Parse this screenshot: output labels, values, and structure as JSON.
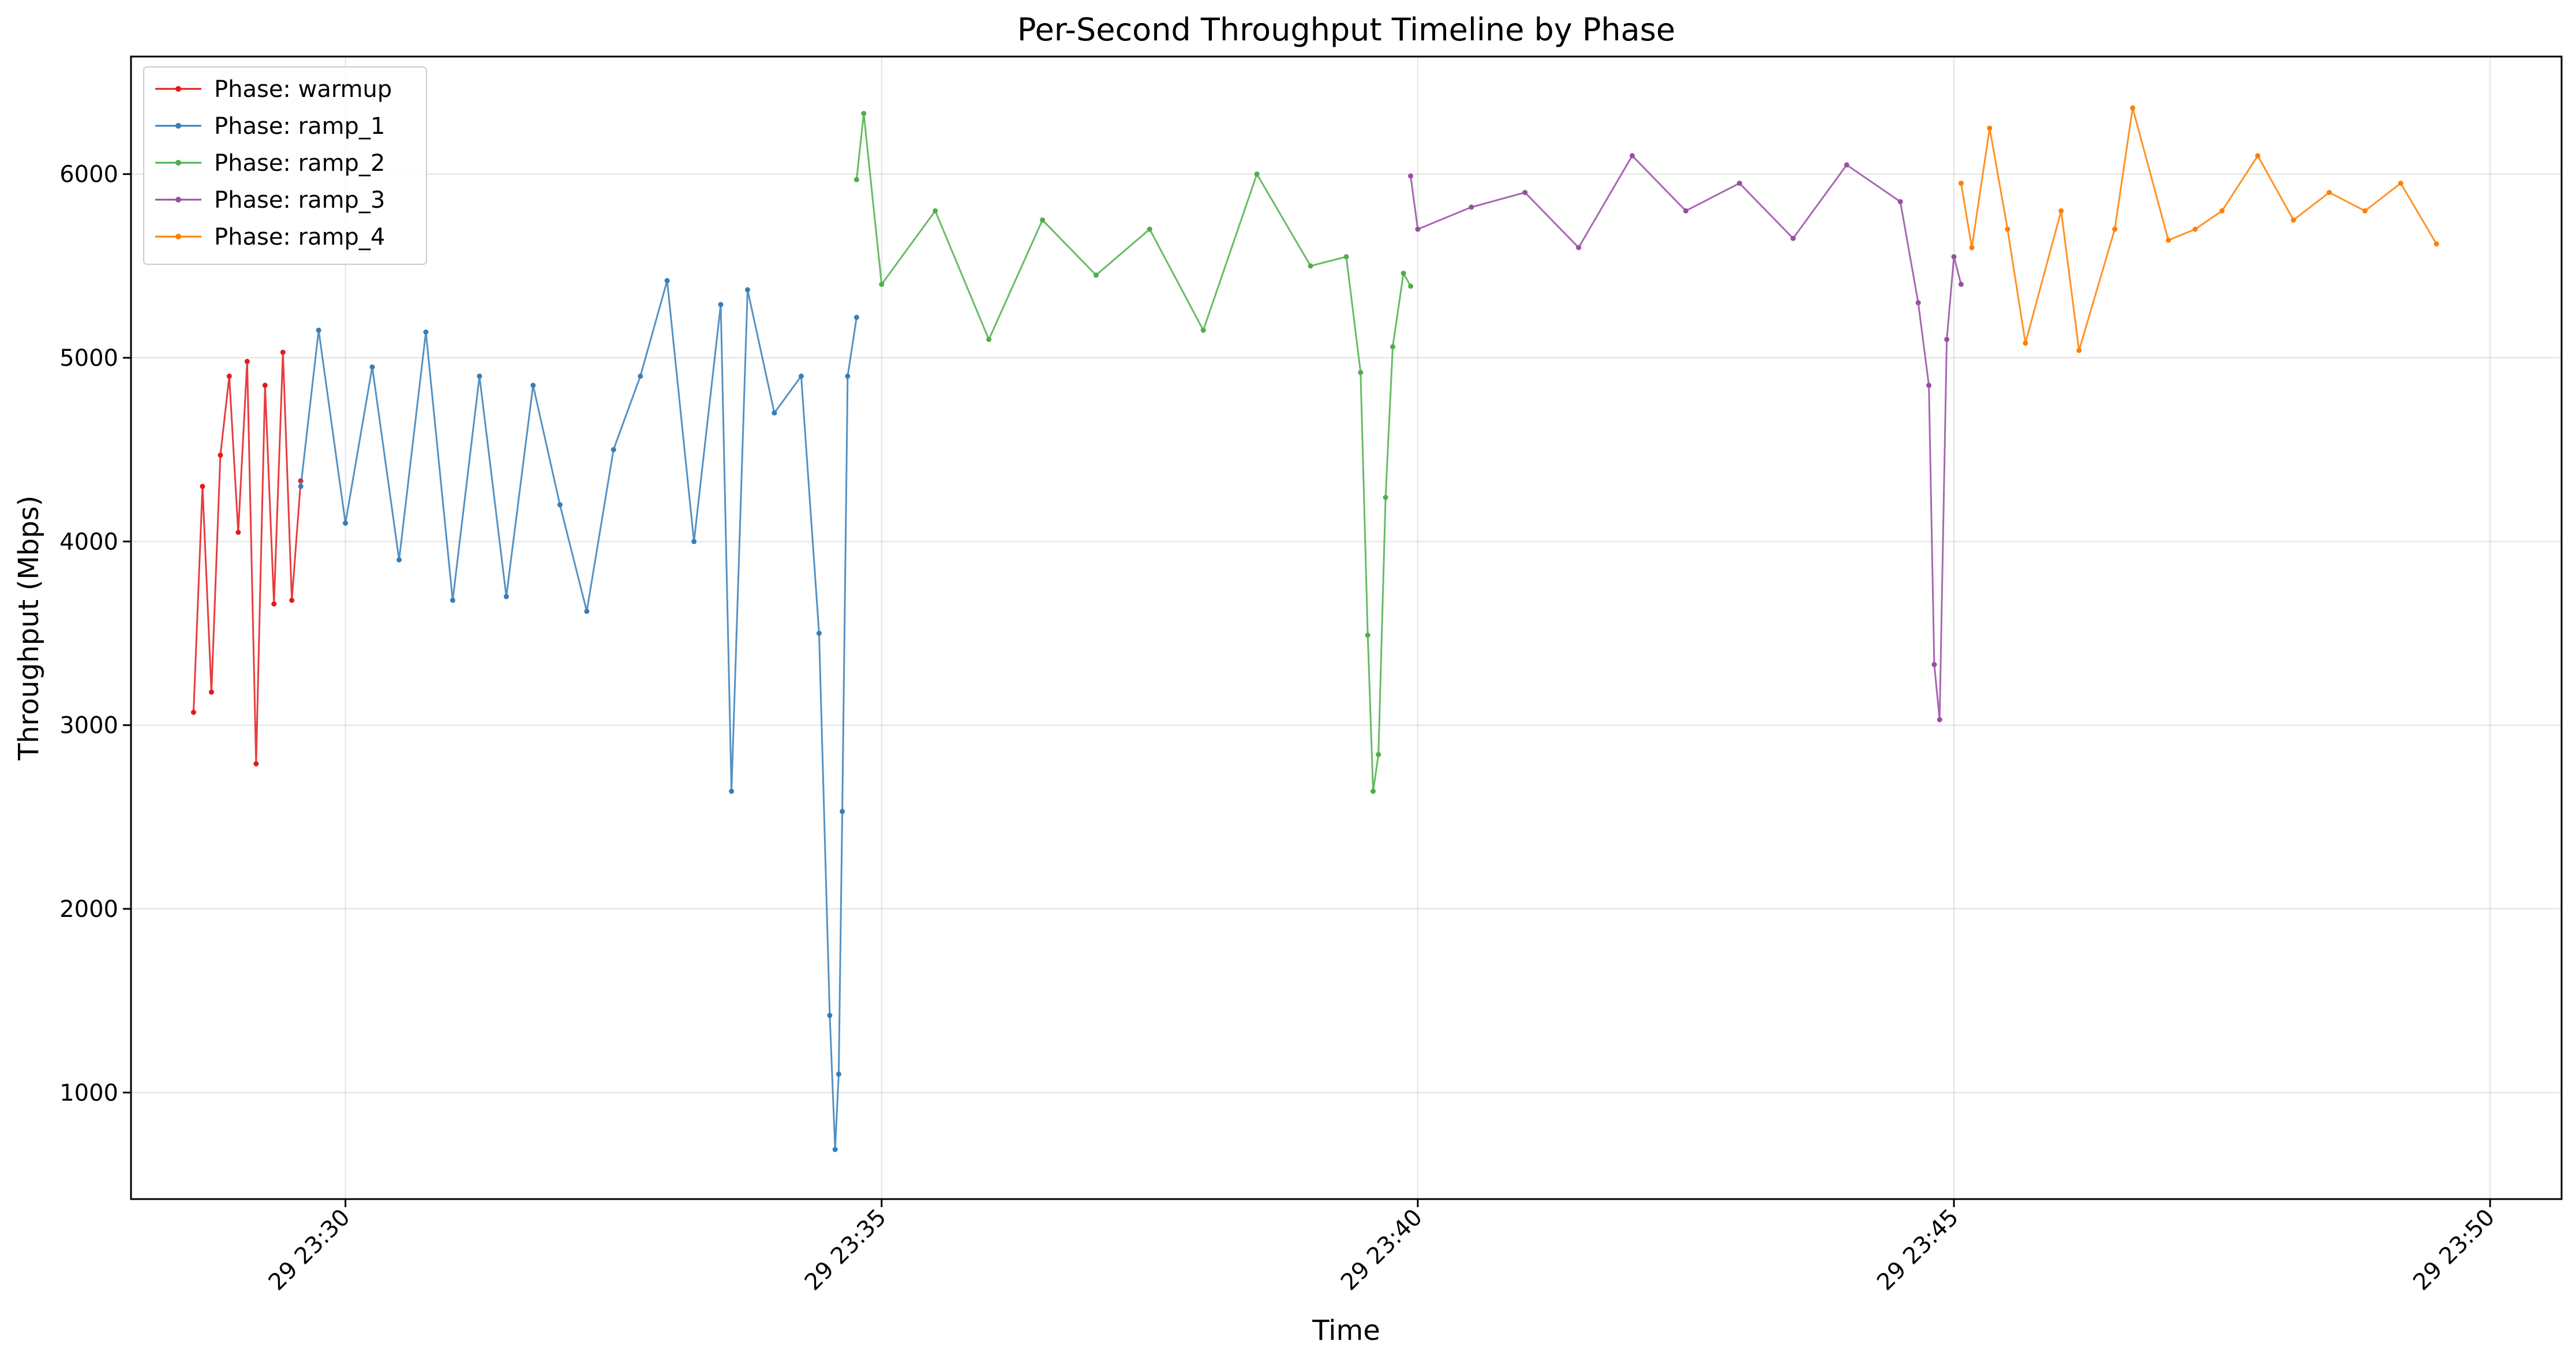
{
  "chart_data": {
    "type": "line",
    "title": "Per-Second Throughput Timeline by Phase",
    "xlabel": "Time",
    "ylabel": "Throughput (Mbps)",
    "x_axis_kind": "time",
    "xlim": [
      "2024-01-29 23:28:00",
      "2024-01-29 23:50:40"
    ],
    "ylim": [
      420,
      6640
    ],
    "x_ticks": [
      {
        "value": "2024-01-29 23:30:00",
        "label": "29 23:30"
      },
      {
        "value": "2024-01-29 23:35:00",
        "label": "29 23:35"
      },
      {
        "value": "2024-01-29 23:40:00",
        "label": "29 23:40"
      },
      {
        "value": "2024-01-29 23:45:00",
        "label": "29 23:45"
      },
      {
        "value": "2024-01-29 23:50:00",
        "label": "29 23:50"
      }
    ],
    "y_ticks": [
      1000,
      2000,
      3000,
      4000,
      5000,
      6000
    ],
    "y_tick_labels": [
      "1000",
      "2000",
      "3000",
      "4000",
      "5000",
      "6000"
    ],
    "grid": true,
    "legend_position": "top-left",
    "series": [
      {
        "name": "Phase: warmup",
        "color": "#e41a1c",
        "x": [
          "2024-01-29 23:28:35",
          "2024-01-29 23:28:40",
          "2024-01-29 23:28:45",
          "2024-01-29 23:28:50",
          "2024-01-29 23:28:55",
          "2024-01-29 23:29:00",
          "2024-01-29 23:29:05",
          "2024-01-29 23:29:10",
          "2024-01-29 23:29:15",
          "2024-01-29 23:29:20",
          "2024-01-29 23:29:25",
          "2024-01-29 23:29:30",
          "2024-01-29 23:29:35"
        ],
        "y": [
          3070,
          4300,
          3180,
          4470,
          4900,
          4050,
          4980,
          2790,
          4850,
          3660,
          5030,
          3680,
          4330
        ]
      },
      {
        "name": "Phase: ramp_1",
        "color": "#377eb8",
        "x": [
          "2024-01-29 23:29:35",
          "2024-01-29 23:29:45",
          "2024-01-29 23:30:00",
          "2024-01-29 23:30:15",
          "2024-01-29 23:30:30",
          "2024-01-29 23:30:45",
          "2024-01-29 23:31:00",
          "2024-01-29 23:31:15",
          "2024-01-29 23:31:30",
          "2024-01-29 23:31:45",
          "2024-01-29 23:32:00",
          "2024-01-29 23:32:15",
          "2024-01-29 23:32:30",
          "2024-01-29 23:32:45",
          "2024-01-29 23:33:00",
          "2024-01-29 23:33:15",
          "2024-01-29 23:33:30",
          "2024-01-29 23:33:36",
          "2024-01-29 23:33:45",
          "2024-01-29 23:34:00",
          "2024-01-29 23:34:15",
          "2024-01-29 23:34:25",
          "2024-01-29 23:34:31",
          "2024-01-29 23:34:34",
          "2024-01-29 23:34:36",
          "2024-01-29 23:34:38",
          "2024-01-29 23:34:41",
          "2024-01-29 23:34:46"
        ],
        "y": [
          4300,
          5150,
          4100,
          4950,
          3900,
          5140,
          3680,
          4900,
          3700,
          4850,
          4200,
          3620,
          4500,
          4900,
          5420,
          4000,
          5290,
          2640,
          5370,
          4700,
          4900,
          3500,
          1420,
          690,
          1100,
          2530,
          4900,
          5220
        ]
      },
      {
        "name": "Phase: ramp_2",
        "color": "#4daf4a",
        "x": [
          "2024-01-29 23:34:46",
          "2024-01-29 23:34:50",
          "2024-01-29 23:35:00",
          "2024-01-29 23:35:30",
          "2024-01-29 23:36:00",
          "2024-01-29 23:36:30",
          "2024-01-29 23:37:00",
          "2024-01-29 23:37:30",
          "2024-01-29 23:38:00",
          "2024-01-29 23:38:30",
          "2024-01-29 23:39:00",
          "2024-01-29 23:39:20",
          "2024-01-29 23:39:28",
          "2024-01-29 23:39:32",
          "2024-01-29 23:39:35",
          "2024-01-29 23:39:38",
          "2024-01-29 23:39:42",
          "2024-01-29 23:39:46",
          "2024-01-29 23:39:52",
          "2024-01-29 23:39:56"
        ],
        "y": [
          5970,
          6330,
          5400,
          5800,
          5100,
          5750,
          5450,
          5700,
          5150,
          6000,
          5500,
          5550,
          4920,
          3490,
          2640,
          2840,
          4240,
          5060,
          5460,
          5390
        ]
      },
      {
        "name": "Phase: ramp_3",
        "color": "#984ea3",
        "x": [
          "2024-01-29 23:39:56",
          "2024-01-29 23:40:00",
          "2024-01-29 23:40:30",
          "2024-01-29 23:41:00",
          "2024-01-29 23:41:30",
          "2024-01-29 23:42:00",
          "2024-01-29 23:42:30",
          "2024-01-29 23:43:00",
          "2024-01-29 23:43:30",
          "2024-01-29 23:44:00",
          "2024-01-29 23:44:30",
          "2024-01-29 23:44:40",
          "2024-01-29 23:44:46",
          "2024-01-29 23:44:49",
          "2024-01-29 23:44:52",
          "2024-01-29 23:44:56",
          "2024-01-29 23:45:00",
          "2024-01-29 23:45:04"
        ],
        "y": [
          5990,
          5700,
          5820,
          5900,
          5600,
          6100,
          5800,
          5950,
          5650,
          6050,
          5850,
          5300,
          4850,
          3330,
          3030,
          5100,
          5550,
          5400
        ]
      },
      {
        "name": "Phase: ramp_4",
        "color": "#ff7f00",
        "x": [
          "2024-01-29 23:45:04",
          "2024-01-29 23:45:10",
          "2024-01-29 23:45:20",
          "2024-01-29 23:45:30",
          "2024-01-29 23:45:40",
          "2024-01-29 23:46:00",
          "2024-01-29 23:46:10",
          "2024-01-29 23:46:30",
          "2024-01-29 23:46:40",
          "2024-01-29 23:47:00",
          "2024-01-29 23:47:15",
          "2024-01-29 23:47:30",
          "2024-01-29 23:47:50",
          "2024-01-29 23:48:10",
          "2024-01-29 23:48:30",
          "2024-01-29 23:48:50",
          "2024-01-29 23:49:10",
          "2024-01-29 23:49:30"
        ],
        "y": [
          5950,
          5600,
          6250,
          5700,
          5080,
          5800,
          5040,
          5700,
          6360,
          5640,
          5700,
          5800,
          6100,
          5750,
          5900,
          5800,
          5950,
          5620
        ]
      }
    ]
  }
}
